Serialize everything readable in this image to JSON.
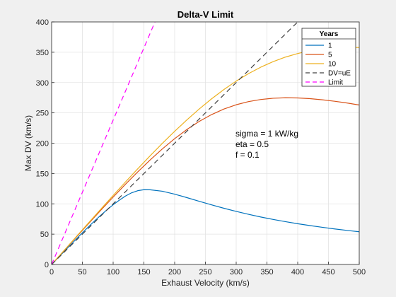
{
  "chart_data": {
    "type": "line",
    "title": "Delta-V Limit",
    "xlabel": "Exhaust Velocity (km/s)",
    "ylabel": "Max DV (km/s)",
    "xlim": [
      0,
      500
    ],
    "ylim": [
      0,
      400
    ],
    "xticks": [
      0,
      50,
      100,
      150,
      200,
      250,
      300,
      350,
      400,
      450,
      500
    ],
    "yticks": [
      0,
      50,
      100,
      150,
      200,
      250,
      300,
      350,
      400
    ],
    "grid": true,
    "legend": {
      "title": "Years",
      "placement": "top-right"
    },
    "annotations": [
      "sigma = 1 kW/kg",
      "eta = 0.5",
      "f = 0.1"
    ],
    "series": [
      {
        "name": "1",
        "color": "#0072BD",
        "style": "solid",
        "x": [
          0,
          10,
          20,
          30,
          40,
          50,
          60,
          70,
          80,
          90,
          100,
          110,
          120,
          130,
          140,
          150,
          160,
          180,
          200,
          220,
          240,
          260,
          280,
          300,
          320,
          340,
          360,
          380,
          400,
          420,
          440,
          460,
          480,
          500
        ],
        "y": [
          0,
          10.5,
          21.0,
          31.5,
          41.9,
          52.2,
          62.2,
          71.9,
          81.3,
          90.2,
          98.5,
          106.0,
          112.8,
          118.2,
          121.7,
          123.3,
          123.2,
          120.8,
          116.0,
          110.2,
          104.2,
          98.3,
          92.7,
          87.5,
          82.7,
          78.3,
          74.3,
          70.6,
          67.2,
          64.1,
          61.3,
          58.6,
          56.2,
          53.9
        ]
      },
      {
        "name": "5",
        "color": "#D95319",
        "style": "solid",
        "x": [
          0,
          20,
          40,
          60,
          80,
          100,
          120,
          140,
          160,
          180,
          200,
          220,
          240,
          260,
          280,
          300,
          320,
          340,
          360,
          380,
          400,
          420,
          440,
          460,
          480,
          500
        ],
        "y": [
          0,
          22.5,
          45.0,
          67.4,
          89.5,
          111.1,
          132.3,
          152.7,
          172.2,
          190.6,
          207.5,
          222.7,
          236.0,
          247.2,
          256.3,
          263.4,
          268.6,
          272.1,
          274.1,
          274.9,
          274.6,
          273.5,
          271.6,
          269.2,
          266.3,
          263.0
        ]
      },
      {
        "name": "10",
        "color": "#EDB120",
        "style": "solid",
        "x": [
          0,
          20,
          40,
          60,
          80,
          100,
          120,
          140,
          160,
          180,
          200,
          220,
          240,
          260,
          280,
          300,
          320,
          340,
          360,
          380,
          400,
          420,
          440,
          460,
          480,
          500
        ],
        "y": [
          0,
          22.9,
          45.8,
          68.6,
          91.3,
          113.8,
          136.0,
          157.8,
          179.1,
          199.8,
          219.6,
          238.6,
          256.5,
          273.2,
          288.5,
          302.4,
          314.7,
          325.4,
          334.5,
          342.0,
          347.9,
          352.4,
          355.5,
          357.3,
          358.0,
          357.8
        ]
      },
      {
        "name": "DV=uE",
        "color": "#404040",
        "style": "dashed",
        "x": [
          0,
          400
        ],
        "y": [
          0,
          400
        ]
      },
      {
        "name": "Limit",
        "color": "#FF00FF",
        "style": "dashed",
        "x": [
          0,
          168
        ],
        "y": [
          0,
          400
        ]
      }
    ]
  }
}
